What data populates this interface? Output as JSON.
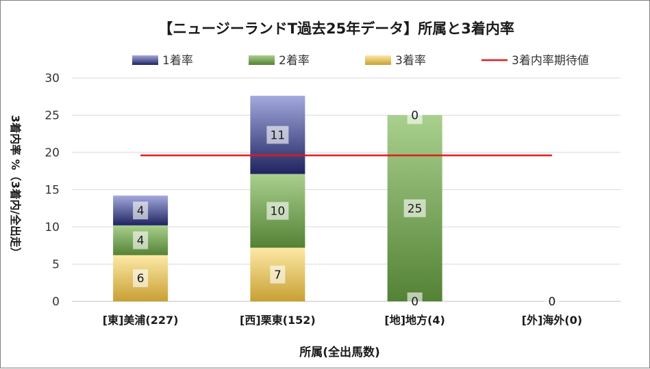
{
  "chart_data": {
    "type": "bar",
    "stacked": true,
    "title": "【ニュージーランドT過去25年データ】所属と3着内率",
    "xlabel": "所属(全出馬数)",
    "ylabel": "3着内率 %（3着内/全出走）",
    "ylim": [
      0,
      30
    ],
    "yticks": [
      0,
      5,
      10,
      15,
      20,
      25,
      30
    ],
    "grid": true,
    "legend_position": "top",
    "categories": [
      "[東]美浦(227)",
      "[西]栗東(152)",
      "[地]地方(4)",
      "[外]海外(0)"
    ],
    "series": [
      {
        "name": "3着率",
        "values": [
          6.2,
          7.2,
          0,
          0
        ],
        "labels": [
          "6",
          "7",
          "0",
          "0"
        ],
        "color_top": "#fde9a6",
        "color_bottom": "#c8a033"
      },
      {
        "name": "2着率",
        "values": [
          4.0,
          9.9,
          25.0,
          0
        ],
        "labels": [
          "4",
          "10",
          "25",
          ""
        ],
        "color_top": "#a9d08e",
        "color_bottom": "#548235"
      },
      {
        "name": "1着率",
        "values": [
          4.0,
          10.5,
          0,
          0
        ],
        "labels": [
          "4",
          "11",
          "0",
          ""
        ],
        "color_top": "#a3a9dd",
        "color_bottom": "#1f2460"
      }
    ],
    "reference_line": {
      "name": "3着内率期待値",
      "value": 19.6,
      "color": "#e0191a"
    }
  }
}
